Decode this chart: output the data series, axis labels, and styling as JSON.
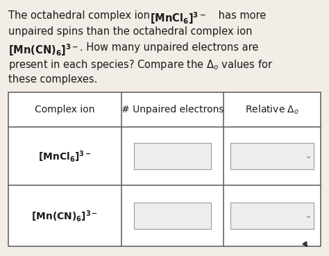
{
  "background_color": "#f2ede6",
  "text_color": "#1a1a1a",
  "table_bg": "#ffffff",
  "table_border_color": "#666666",
  "input_box_color": "#eeeeee",
  "input_box_border": "#999999",
  "font_size_body": 10.5,
  "font_size_table": 10.0,
  "line1_normal": "The octahedral complex ion ",
  "line1_bold": "[MnCl",
  "line1_normal2": " has more",
  "line2": "unpaired spins than the octahedral complex ion",
  "line3_bold": "[Mn(CN)",
  "line3_normal": ". How many unpaired electrons are",
  "line4": "present in each species? Compare the Δ₀ values for",
  "line5": "these complexes.",
  "col_header": [
    "Complex ion",
    "# Unpaired electrons",
    "Relative Δ₀"
  ],
  "row1_label": "[MnCl",
  "row2_label": "[Mn(CN)"
}
